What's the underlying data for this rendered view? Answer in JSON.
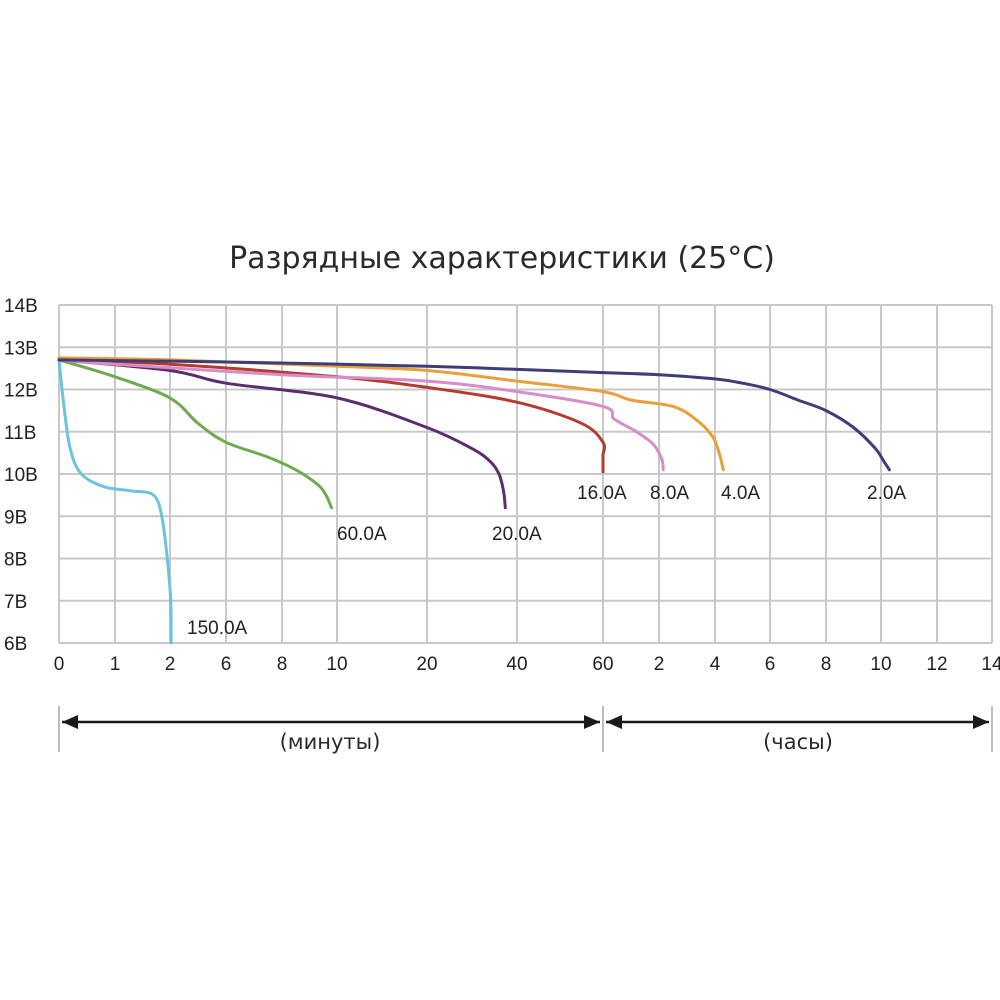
{
  "chart_data": {
    "type": "line",
    "title": "Разрядные характеристики (25°C)",
    "y_tick_labels": [
      "14В",
      "13В",
      "12В",
      "11В",
      "10В",
      "9В",
      "8В",
      "7В",
      "6В"
    ],
    "y_values": [
      14,
      13,
      12,
      11,
      10,
      9,
      8,
      7,
      6
    ],
    "ylim": [
      6,
      14
    ],
    "x_tick_labels": [
      "0",
      "1",
      "2",
      "6",
      "8",
      "10",
      "20",
      "40",
      "60",
      "2",
      "4",
      "6",
      "8",
      "10",
      "12",
      "14"
    ],
    "grid": true,
    "ranges": [
      {
        "label": "(минуты)",
        "from_tick": 0,
        "to_tick": 8
      },
      {
        "label": "(часы)",
        "from_tick": 8,
        "to_tick": 15
      }
    ],
    "series": [
      {
        "name": "150.0A",
        "color": "#6cc3dc",
        "points": [
          [
            0,
            12.7
          ],
          [
            0.08,
            11.7
          ],
          [
            0.2,
            10.6
          ],
          [
            0.4,
            10.0
          ],
          [
            0.8,
            9.7
          ],
          [
            1.3,
            9.6
          ],
          [
            1.7,
            9.5
          ],
          [
            1.85,
            9.0
          ],
          [
            1.95,
            8.0
          ],
          [
            2.05,
            7.0
          ],
          [
            2.08,
            6.0
          ]
        ]
      },
      {
        "name": "60.0A",
        "color": "#6fab4e",
        "points": [
          [
            0,
            12.7
          ],
          [
            1,
            12.3
          ],
          [
            2,
            11.8
          ],
          [
            4,
            11.2
          ],
          [
            6,
            10.75
          ],
          [
            7.5,
            10.4
          ],
          [
            8.5,
            10.1
          ],
          [
            9.3,
            9.75
          ],
          [
            9.6,
            9.5
          ],
          [
            9.8,
            9.2
          ]
        ]
      },
      {
        "name": "20.0A",
        "color": "#5a2e6b",
        "points": [
          [
            0,
            12.7
          ],
          [
            2,
            12.45
          ],
          [
            6,
            12.15
          ],
          [
            10,
            11.8
          ],
          [
            20,
            11.1
          ],
          [
            30,
            10.6
          ],
          [
            34,
            10.3
          ],
          [
            36,
            10.0
          ],
          [
            37,
            9.6
          ],
          [
            37.4,
            9.2
          ]
        ]
      },
      {
        "name": "16.0A",
        "color": "#b53b2e",
        "points": [
          [
            0,
            12.7
          ],
          [
            2,
            12.6
          ],
          [
            10,
            12.3
          ],
          [
            20,
            12.05
          ],
          [
            40,
            11.7
          ],
          [
            55,
            11.2
          ],
          [
            60,
            10.75
          ],
          [
            62,
            10.45
          ],
          [
            63,
            10.2
          ],
          [
            63.5,
            10.05
          ]
        ]
      },
      {
        "name": "8.0A",
        "color": "#d98cc9",
        "points": [
          [
            0,
            12.7
          ],
          [
            1,
            12.6
          ],
          [
            8,
            12.35
          ],
          [
            20,
            12.2
          ],
          [
            40,
            11.95
          ],
          [
            60,
            11.6
          ],
          [
            1.2,
            11.3
          ],
          [
            1.6,
            11.0
          ],
          [
            1.9,
            10.7
          ],
          [
            2.1,
            10.35
          ],
          [
            2.15,
            10.1
          ]
        ]
      },
      {
        "name": "4.0A",
        "color": "#e8a03a",
        "points": [
          [
            0,
            12.75
          ],
          [
            2,
            12.7
          ],
          [
            10,
            12.55
          ],
          [
            20,
            12.45
          ],
          [
            40,
            12.2
          ],
          [
            60,
            11.95
          ],
          [
            1.5,
            11.75
          ],
          [
            2.5,
            11.6
          ],
          [
            3.3,
            11.3
          ],
          [
            3.9,
            10.9
          ],
          [
            4.15,
            10.5
          ],
          [
            4.3,
            10.1
          ]
        ]
      },
      {
        "name": "2.0A",
        "color": "#3d3d78",
        "points": [
          [
            0,
            12.7
          ],
          [
            6,
            12.65
          ],
          [
            20,
            12.55
          ],
          [
            60,
            12.4
          ],
          [
            2,
            12.35
          ],
          [
            4,
            12.25
          ],
          [
            5,
            12.15
          ],
          [
            6,
            12.0
          ],
          [
            7,
            11.75
          ],
          [
            8,
            11.5
          ],
          [
            9,
            11.1
          ],
          [
            9.8,
            10.6
          ],
          [
            10.1,
            10.3
          ],
          [
            10.3,
            10.1
          ]
        ]
      }
    ]
  },
  "labels": {
    "s150": "150.0A",
    "s60": "60.0A",
    "s20": "20.0A",
    "s16": "16.0A",
    "s8": "8.0A",
    "s4": "4.0A",
    "s2": "2.0A"
  }
}
